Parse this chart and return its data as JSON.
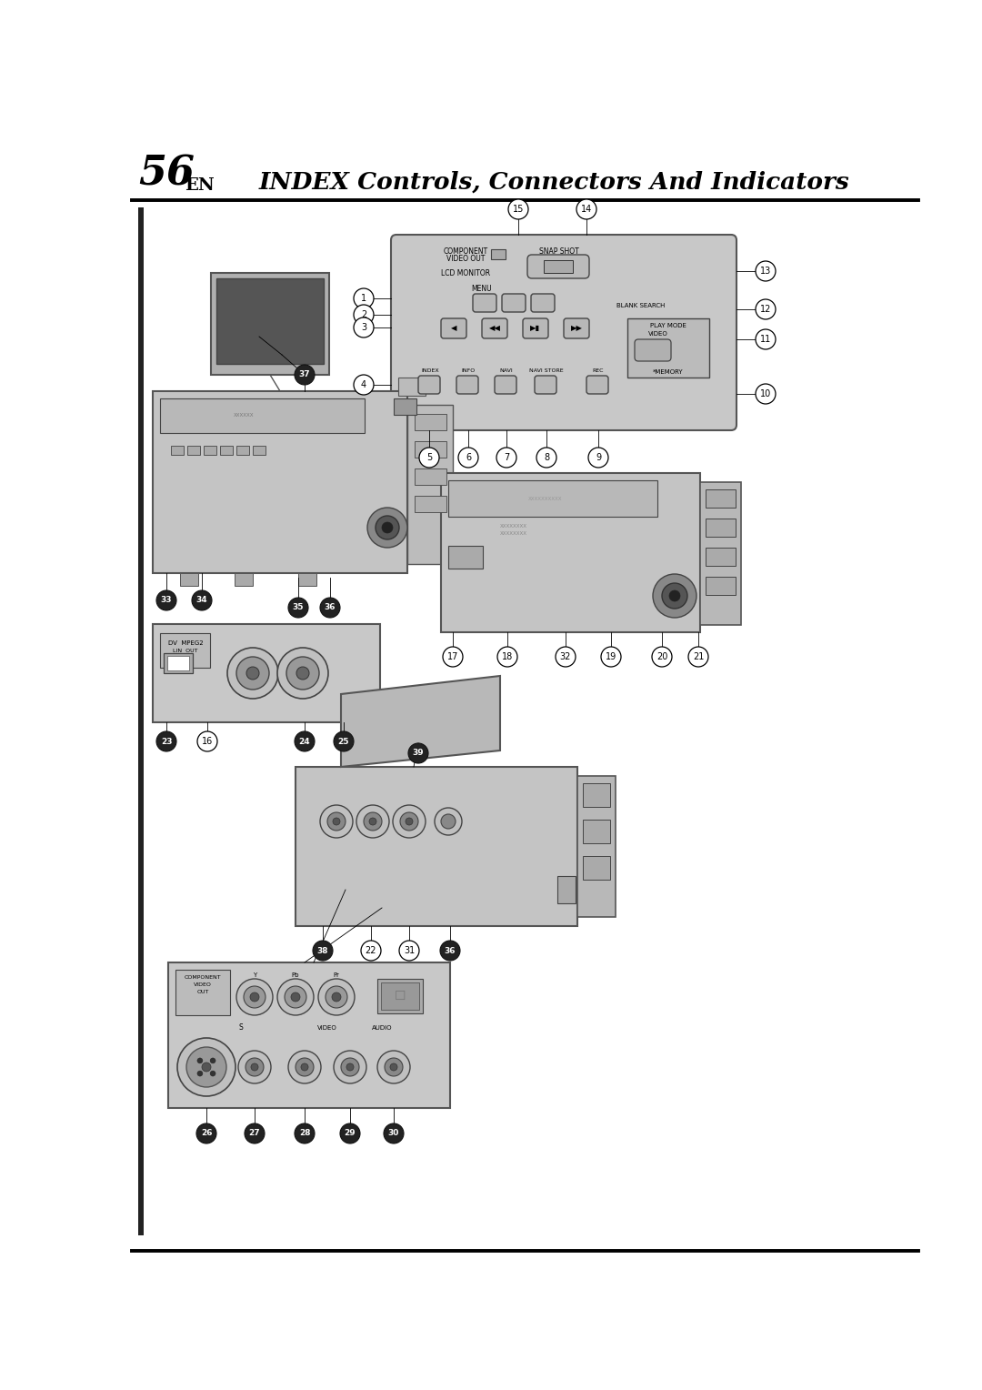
{
  "page_number": "56",
  "page_suffix": "EN",
  "title": "INDEX Controls, Connectors And Indicators",
  "bg_color": "#ffffff",
  "fig_width": 10.8,
  "fig_height": 15.28,
  "dpi": 100
}
